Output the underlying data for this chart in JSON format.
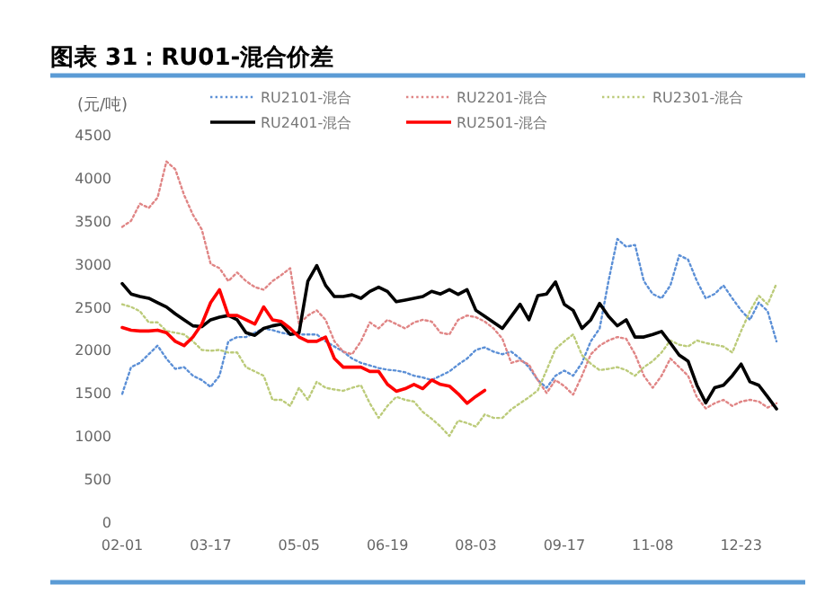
{
  "chart_data": {
    "type": "line",
    "title": "图表 31：RU01-混合价差",
    "ylabel": "(元/吨)",
    "ylim": [
      0,
      4500
    ],
    "yticks": [
      0,
      500,
      1000,
      1500,
      2000,
      2500,
      3000,
      3500,
      4000,
      4500
    ],
    "grid": false,
    "legend": "top",
    "marker": "none",
    "categories": [
      "02-01",
      null,
      null,
      null,
      null,
      null,
      null,
      null,
      null,
      null,
      "03-17",
      null,
      null,
      null,
      null,
      null,
      null,
      null,
      null,
      null,
      "05-05",
      null,
      null,
      null,
      null,
      null,
      null,
      null,
      null,
      null,
      "06-19",
      null,
      null,
      null,
      null,
      null,
      null,
      null,
      null,
      null,
      "08-03",
      null,
      null,
      null,
      null,
      null,
      null,
      null,
      null,
      null,
      "09-17",
      null,
      null,
      null,
      null,
      null,
      null,
      null,
      null,
      null,
      "11-08",
      null,
      null,
      null,
      null,
      null,
      null,
      null,
      null,
      null,
      "12-23",
      null,
      null,
      null,
      null
    ],
    "series": [
      {
        "name": "RU2101-混合",
        "color": "#5b8fd6",
        "line_style": "dotted",
        "values": [
          1490,
          1800,
          1850,
          1950,
          2050,
          1900,
          1780,
          1800,
          1700,
          1650,
          1570,
          1700,
          2100,
          2150,
          2150,
          2200,
          2250,
          2230,
          2200,
          2180,
          2180,
          2180,
          2180,
          2100,
          2040,
          1980,
          1900,
          1850,
          1820,
          1790,
          1770,
          1760,
          1740,
          1700,
          1680,
          1650,
          1700,
          1750,
          1830,
          1900,
          2000,
          2030,
          1980,
          1950,
          1980,
          1900,
          1800,
          1650,
          1560,
          1700,
          1760,
          1700,
          1850,
          2100,
          2250,
          2800,
          3290,
          3200,
          3220,
          2800,
          2650,
          2600,
          2750,
          3100,
          3050,
          2800,
          2600,
          2650,
          2750,
          2600,
          2460,
          2350,
          2550,
          2450,
          2100
        ]
      },
      {
        "name": "RU2201-混合",
        "color": "#e08585",
        "line_style": "dotted",
        "values": [
          3430,
          3500,
          3700,
          3650,
          3770,
          4190,
          4100,
          3800,
          3570,
          3400,
          3000,
          2950,
          2800,
          2900,
          2800,
          2730,
          2700,
          2800,
          2870,
          2950,
          2300,
          2400,
          2460,
          2350,
          2100,
          1980,
          1950,
          2100,
          2320,
          2250,
          2350,
          2300,
          2250,
          2320,
          2350,
          2330,
          2200,
          2180,
          2350,
          2400,
          2380,
          2330,
          2250,
          2130,
          1850,
          1880,
          1830,
          1650,
          1500,
          1650,
          1580,
          1480,
          1700,
          1950,
          2050,
          2110,
          2150,
          2130,
          1950,
          1700,
          1560,
          1700,
          1900,
          1800,
          1700,
          1450,
          1320,
          1380,
          1420,
          1350,
          1400,
          1420,
          1400,
          1330,
          1380
        ]
      },
      {
        "name": "RU2301-混合",
        "color": "#bccb7a",
        "line_style": "dotted",
        "values": [
          2530,
          2500,
          2450,
          2320,
          2320,
          2220,
          2200,
          2180,
          2100,
          2000,
          1990,
          2000,
          1970,
          1970,
          1800,
          1750,
          1700,
          1420,
          1420,
          1350,
          1560,
          1420,
          1630,
          1560,
          1540,
          1525,
          1560,
          1590,
          1380,
          1210,
          1350,
          1455,
          1420,
          1400,
          1280,
          1200,
          1110,
          1000,
          1180,
          1150,
          1110,
          1250,
          1210,
          1210,
          1310,
          1380,
          1450,
          1530,
          1765,
          2010,
          2100,
          2180,
          1940,
          1840,
          1765,
          1780,
          1800,
          1765,
          1700,
          1800,
          1870,
          1970,
          2110,
          2060,
          2040,
          2110,
          2080,
          2060,
          2040,
          1970,
          2220,
          2450,
          2630,
          2530,
          2770
        ]
      },
      {
        "name": "RU2401-混合",
        "color": "#000000",
        "line_style": "solid",
        "values": [
          2770,
          2650,
          2620,
          2600,
          2550,
          2500,
          2420,
          2350,
          2280,
          2270,
          2350,
          2380,
          2400,
          2350,
          2200,
          2170,
          2250,
          2280,
          2300,
          2180,
          2200,
          2800,
          2980,
          2750,
          2620,
          2620,
          2640,
          2600,
          2680,
          2730,
          2680,
          2560,
          2580,
          2600,
          2620,
          2680,
          2650,
          2700,
          2645,
          2700,
          2460,
          2390,
          2320,
          2250,
          2390,
          2530,
          2350,
          2630,
          2650,
          2790,
          2530,
          2460,
          2250,
          2350,
          2540,
          2390,
          2280,
          2350,
          2150,
          2150,
          2180,
          2215,
          2080,
          1940,
          1870,
          1590,
          1385,
          1560,
          1590,
          1700,
          1835,
          1630,
          1590,
          1455,
          1315
        ]
      },
      {
        "name": "RU2501-混合",
        "color": "#ff0000",
        "line_style": "solid",
        "values": [
          2260,
          2230,
          2220,
          2220,
          2230,
          2200,
          2100,
          2050,
          2150,
          2300,
          2550,
          2700,
          2400,
          2400,
          2350,
          2300,
          2500,
          2350,
          2330,
          2250,
          2150,
          2100,
          2100,
          2150,
          1900,
          1800,
          1800,
          1800,
          1750,
          1750,
          1600,
          1520,
          1550,
          1600,
          1550,
          1650,
          1600,
          1580,
          1490,
          1380,
          1460,
          1530,
          null,
          null,
          null,
          null,
          null,
          null,
          null,
          null,
          null,
          null,
          null,
          null,
          null,
          null,
          null,
          null,
          null,
          null,
          null,
          null,
          null,
          null,
          null,
          null,
          null,
          null,
          null,
          null,
          null,
          null,
          null,
          null,
          null
        ]
      }
    ]
  }
}
